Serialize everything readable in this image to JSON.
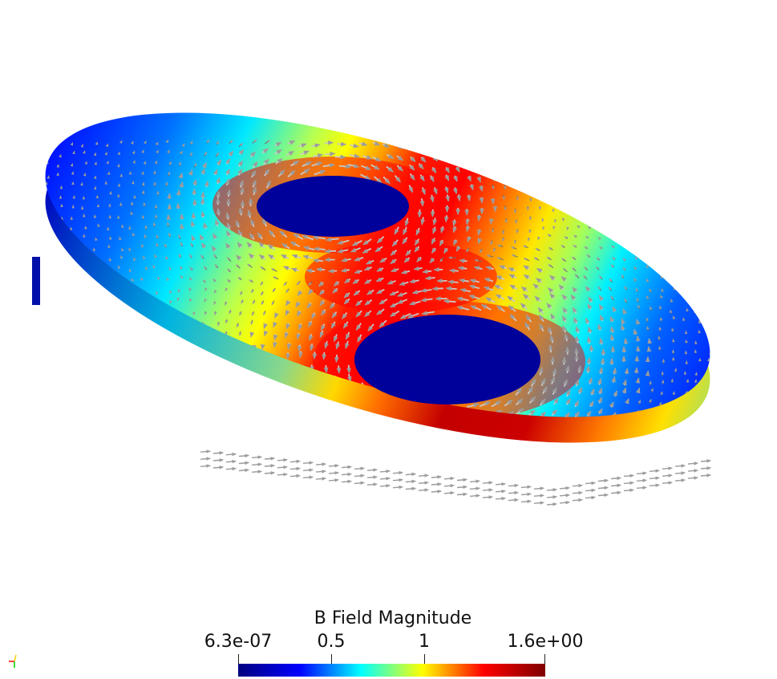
{
  "legend": {
    "title": "B Field Magnitude",
    "tick_labels": [
      "6.3e-07",
      "0.5",
      "1",
      "1.6e+00"
    ],
    "range": [
      6.3e-07,
      1.6
    ],
    "colormap": [
      "#00007f",
      "#0000ff",
      "#00ffff",
      "#ffff00",
      "#ff0000",
      "#7f0000"
    ]
  },
  "scene": {
    "object": "disk-with-two-holes",
    "surface_colors": {
      "low": "#0000ff",
      "mid_low": "#00ffff",
      "mid": "#ffff00",
      "high": "#ff0000",
      "hole": "#00009a"
    },
    "glyph_color": "#8a8a8a"
  },
  "orientation_axes": {
    "x_color": "#ff0000",
    "y_color": "#00cc00",
    "z_color": "#ffcc00"
  }
}
